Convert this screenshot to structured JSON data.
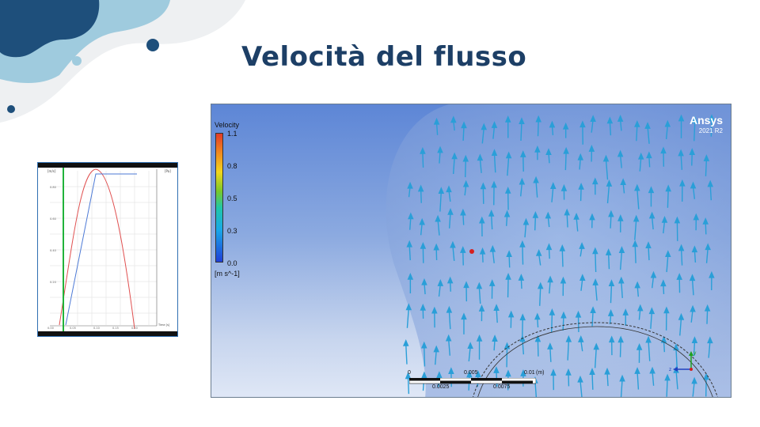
{
  "slide": {
    "title": "Velocità del flusso"
  },
  "viewer": {
    "brand_name": "Ansys",
    "brand_version": "2021 R2",
    "legend": {
      "title": "Velocity",
      "ticks": [
        "1.1",
        "0.8",
        "0.5",
        "0.3",
        "0.0"
      ],
      "unit": "[m s^-1]"
    },
    "scale_bar": {
      "top_labels": [
        "0",
        "0.005",
        "0.01",
        "(m)"
      ],
      "bottom_labels": [
        "0.0025",
        "0.0075"
      ]
    },
    "triad": {
      "z_label": "z",
      "y_label": "y"
    }
  },
  "thumbnail": {
    "left_unit": "[m/s]",
    "right_unit": "[Pa]",
    "x_unit": "Time [s]",
    "x_ticks": [
      "0.00",
      "0.05",
      "0.10",
      "0.15",
      "0.20"
    ],
    "y_ticks": [
      "0.80",
      "0.60",
      "0.40",
      "0.20"
    ],
    "colors": {
      "red_curve": "#e05050",
      "blue_curve": "#4d7ad6",
      "green_line": "#21b33a"
    }
  },
  "colors": {
    "title": "#1d3f66",
    "blob_dark": "#1e4f7b",
    "blob_light": "#9fcbde",
    "vector": "#2a9fd8"
  }
}
